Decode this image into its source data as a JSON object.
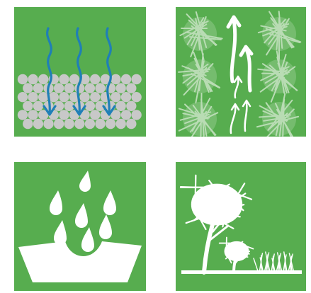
{
  "colors": {
    "tile_green": "#57ad4f",
    "pebble_gray": "#c8c8c8",
    "water_blue": "#1f7fb7",
    "foliage_white": "#ffffff",
    "foliage_scribble": "#b9dcb4",
    "basin_white": "#ffffff"
  },
  "tiles": [
    {
      "icon": "water-infiltration-icon"
    },
    {
      "icon": "evapotranspiration-icon"
    },
    {
      "icon": "rainwater-capture-icon"
    },
    {
      "icon": "vegetation-icon"
    }
  ]
}
